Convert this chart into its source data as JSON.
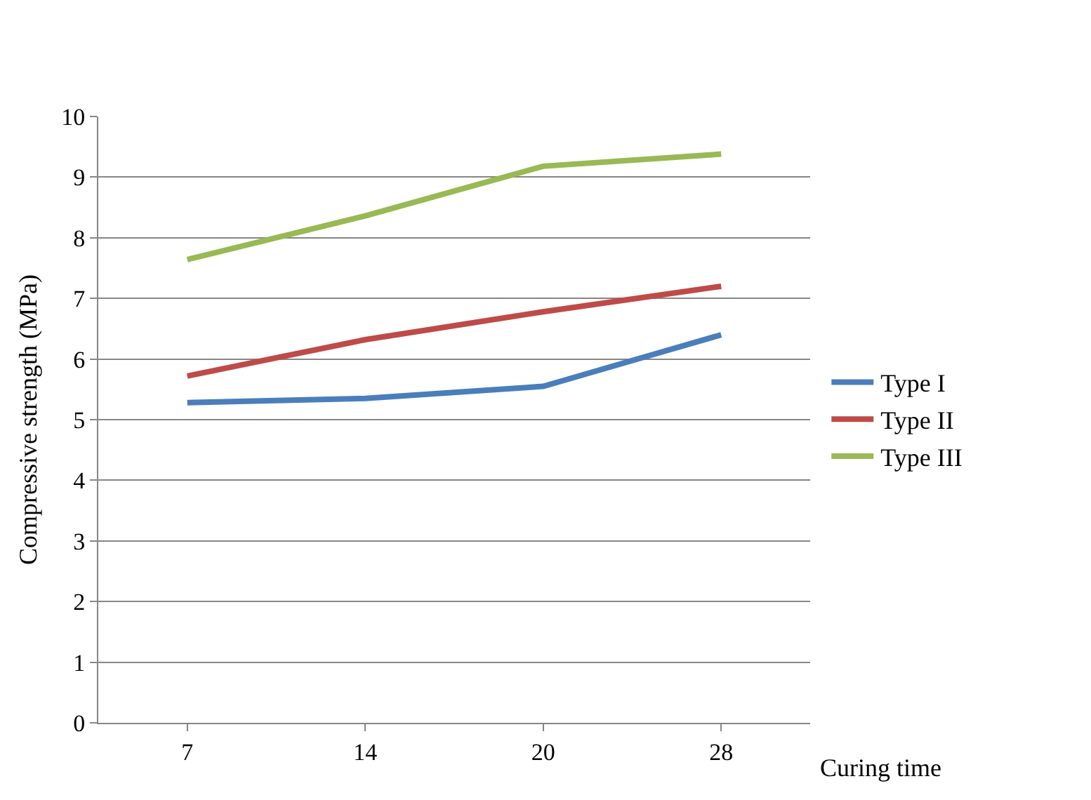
{
  "chart_data": {
    "type": "line",
    "xlabel": "Curing time",
    "ylabel": "Compressive strength (MPa)",
    "categories": [
      "7",
      "14",
      "20",
      "28"
    ],
    "series": [
      {
        "name": "Type I",
        "color": "#4a7ebb",
        "values": [
          5.28,
          5.35,
          5.55,
          6.4
        ]
      },
      {
        "name": "Type II",
        "color": "#be4b48",
        "values": [
          5.72,
          6.32,
          6.78,
          7.2
        ]
      },
      {
        "name": "Type III",
        "color": "#98b954",
        "values": [
          7.64,
          8.36,
          9.18,
          9.38
        ]
      }
    ],
    "ylim": [
      0,
      10
    ],
    "yticks": [
      0,
      1,
      2,
      3,
      4,
      5,
      6,
      7,
      8,
      9,
      10
    ],
    "grid": "y",
    "legend": "right",
    "marker": "none",
    "line_style": "solid"
  }
}
